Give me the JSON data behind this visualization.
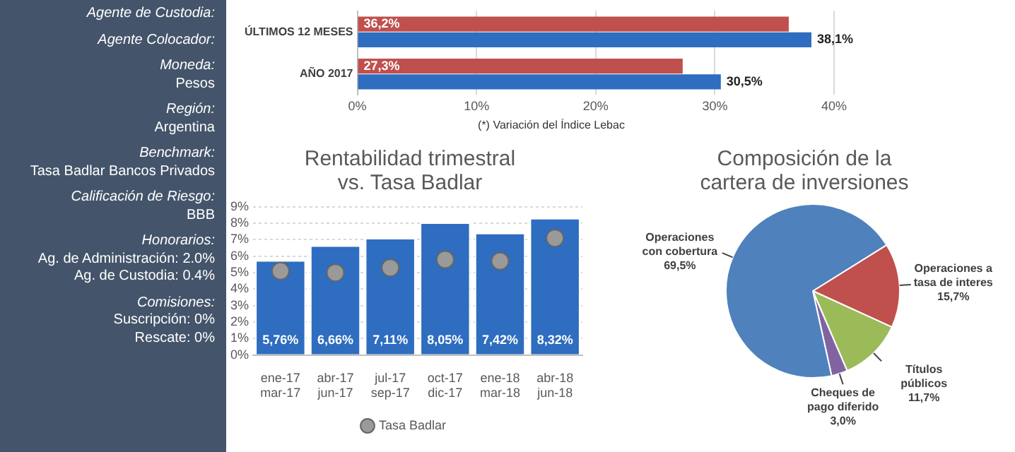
{
  "chart_data": [
    {
      "type": "other",
      "annotations": [
        "Agente de Custodia:",
        "Agente Colocador:",
        "Moneda:\nPesos",
        "Región:\nArgentina",
        "Benchmark:\nTasa Badlar Bancos Privados",
        "Calificación de Riesgo:\nBBB",
        "Honorarios:\nAg. de Administración: 2.0%\nAg. de Custodia: 0.4%",
        "Comisiones:\nSuscripción: 0%\nRescate: 0%"
      ]
    },
    {
      "type": "bar",
      "orientation": "horizontal",
      "categories": [
        "ÚLTIMOS 12 MESES",
        "AÑO 2017"
      ],
      "xlim": [
        0,
        40
      ],
      "xticks": [
        {
          "value": 0,
          "label": "0%"
        },
        {
          "value": 10,
          "label": "10%"
        },
        {
          "value": 20,
          "label": "20%"
        },
        {
          "value": 30,
          "label": "30%"
        },
        {
          "value": 40,
          "label": "40%"
        }
      ],
      "grid": "x",
      "legend": false,
      "series": [
        {
          "color": "#c0504d",
          "values": [
            36.2,
            27.3
          ],
          "value_labels": [
            "36,2%",
            "27,3%"
          ]
        },
        {
          "color": "#2e6dbf",
          "values": [
            38.1,
            30.5
          ],
          "value_labels": [
            "38,1%",
            "30,5%"
          ]
        }
      ],
      "annotations": [
        "(*) Variación del Índice Lebac"
      ]
    },
    {
      "type": "bar",
      "title": "Rentabilidad trimestral vs. Tasa Badlar",
      "categories": [
        "ene-17\nmar-17",
        "abr-17\njun-17",
        "jul-17\nsep-17",
        "oct-17\ndic-17",
        "ene-18\nmar-18",
        "abr-18\njun-18"
      ],
      "ylim": [
        0,
        9
      ],
      "yticks": [
        {
          "value": 0,
          "label": "0%"
        },
        {
          "value": 1,
          "label": "1%"
        },
        {
          "value": 2,
          "label": "2%"
        },
        {
          "value": 3,
          "label": "3%"
        },
        {
          "value": 4,
          "label": "4%"
        },
        {
          "value": 5,
          "label": "5%"
        },
        {
          "value": 6,
          "label": "6%"
        },
        {
          "value": 7,
          "label": "7%"
        },
        {
          "value": 8,
          "label": "8%"
        },
        {
          "value": 9,
          "label": "9%"
        }
      ],
      "grid": "y",
      "legend": "bottom",
      "series": [
        {
          "type": "bar",
          "color": "#2e6dbf",
          "values": [
            5.76,
            6.66,
            7.11,
            8.05,
            7.42,
            8.32
          ],
          "value_labels": [
            "5,76%",
            "6,66%",
            "7,11%",
            "8,05%",
            "7,42%",
            "8,32%"
          ]
        },
        {
          "type": "scatter",
          "name": "Tasa Badlar",
          "color": "#9a9a9a",
          "marker": "circle",
          "x": [
            "ene-17\nmar-17",
            "abr-17\njun-17",
            "jul-17\nsep-17",
            "oct-17\ndic-17",
            "ene-18\nmar-18",
            "abr-18\njun-18"
          ],
          "values": [
            5.1,
            5.0,
            5.3,
            5.8,
            5.7,
            7.1
          ]
        }
      ]
    },
    {
      "type": "pie",
      "title": "Composición de la cartera de inversiones",
      "categories": [
        "Operaciones a tasa de interes",
        "Títulos públicos",
        "Cheques de pago diferido",
        "Operaciones con cobertura"
      ],
      "values": [
        15.7,
        11.7,
        3.0,
        69.5
      ],
      "colors": [
        "#c0504d",
        "#9bbb59",
        "#8064a2",
        "#4f81bd"
      ],
      "value_labels": [
        "15,7%",
        "11,7%",
        "3,0%",
        "69,5%"
      ],
      "legend": false
    }
  ]
}
